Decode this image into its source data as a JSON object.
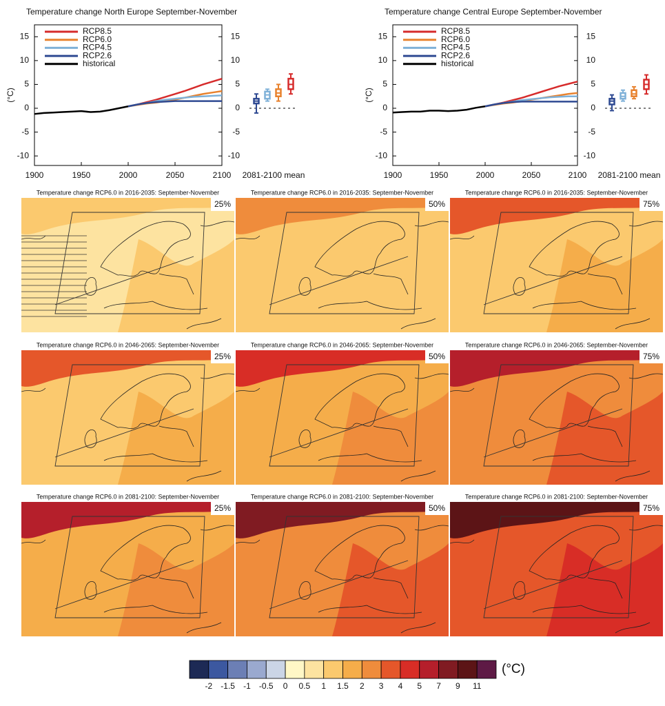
{
  "chart_data": [
    {
      "type": "line",
      "title": "Temperature change North Europe September-November",
      "ylabel": "(°C)",
      "xlabel2": "2081-2100 mean",
      "x": [
        1900,
        1910,
        1920,
        1930,
        1940,
        1950,
        1960,
        1970,
        1980,
        1990,
        2000,
        2010,
        2020,
        2030,
        2040,
        2050,
        2060,
        2070,
        2080,
        2090,
        2100
      ],
      "xlim": [
        1900,
        2100
      ],
      "xticks": [
        1900,
        1950,
        2000,
        2050,
        2100
      ],
      "ylim": [
        -12,
        17.5
      ],
      "yticks": [
        -10,
        -5,
        0,
        5,
        10,
        15
      ],
      "y2ticks": [
        -10,
        -5,
        0,
        5,
        10,
        15
      ],
      "legend": "upper left",
      "series": [
        {
          "name": "RCP8.5",
          "color": "#d62b2b",
          "values": [
            null,
            null,
            null,
            null,
            null,
            null,
            null,
            null,
            null,
            null,
            0.4,
            0.8,
            1.3,
            1.8,
            2.4,
            3.0,
            3.6,
            4.3,
            5.0,
            5.6,
            6.2
          ],
          "box": [
            3,
            4,
            5,
            6.2,
            7.2
          ]
        },
        {
          "name": "RCP6.0",
          "color": "#e8822e",
          "values": [
            null,
            null,
            null,
            null,
            null,
            null,
            null,
            null,
            null,
            null,
            0.4,
            0.7,
            1.0,
            1.2,
            1.5,
            1.8,
            2.2,
            2.6,
            3.0,
            3.3,
            3.6
          ],
          "box": [
            1.5,
            2.5,
            3.2,
            4,
            5
          ]
        },
        {
          "name": "RCP4.5",
          "color": "#7fb1d8",
          "values": [
            null,
            null,
            null,
            null,
            null,
            null,
            null,
            null,
            null,
            null,
            0.4,
            0.8,
            1.1,
            1.5,
            1.8,
            2.0,
            2.2,
            2.4,
            2.5,
            2.6,
            2.7
          ],
          "box": [
            1.5,
            2,
            2.8,
            3.5,
            4
          ]
        },
        {
          "name": "RCP2.6",
          "color": "#2f4a92",
          "values": [
            null,
            null,
            null,
            null,
            null,
            null,
            null,
            null,
            null,
            null,
            0.4,
            0.8,
            1.1,
            1.3,
            1.4,
            1.5,
            1.5,
            1.5,
            1.5,
            1.5,
            1.5
          ],
          "box": [
            -1,
            1,
            1.5,
            2,
            3
          ]
        },
        {
          "name": "historical",
          "color": "#000000",
          "values": [
            -1.2,
            -1,
            -0.9,
            -0.8,
            -0.7,
            -0.6,
            -0.8,
            -0.7,
            -0.4,
            0,
            0.4,
            null,
            null,
            null,
            null,
            null,
            null,
            null,
            null,
            null,
            null
          ]
        }
      ]
    },
    {
      "type": "line",
      "title": "Temperature change Central Europe September-November",
      "ylabel": "(°C)",
      "xlabel2": "2081-2100 mean",
      "x": [
        1900,
        1910,
        1920,
        1930,
        1940,
        1950,
        1960,
        1970,
        1980,
        1990,
        2000,
        2010,
        2020,
        2030,
        2040,
        2050,
        2060,
        2070,
        2080,
        2090,
        2100
      ],
      "xlim": [
        1900,
        2100
      ],
      "xticks": [
        1900,
        1950,
        2000,
        2050,
        2100
      ],
      "ylim": [
        -12,
        17.5
      ],
      "yticks": [
        -10,
        -5,
        0,
        5,
        10,
        15
      ],
      "y2ticks": [
        -10,
        -5,
        0,
        5,
        10,
        15
      ],
      "legend": "upper left",
      "series": [
        {
          "name": "RCP8.5",
          "color": "#d62b2b",
          "values": [
            null,
            null,
            null,
            null,
            null,
            null,
            null,
            null,
            null,
            null,
            0.4,
            0.8,
            1.2,
            1.7,
            2.2,
            2.8,
            3.4,
            4.0,
            4.6,
            5.1,
            5.6
          ],
          "box": [
            3,
            4,
            5,
            6,
            7
          ]
        },
        {
          "name": "RCP6.0",
          "color": "#e8822e",
          "values": [
            null,
            null,
            null,
            null,
            null,
            null,
            null,
            null,
            null,
            null,
            0.4,
            0.7,
            1.0,
            1.2,
            1.5,
            1.8,
            2.1,
            2.4,
            2.7,
            3.0,
            3.2
          ],
          "box": [
            2,
            2.5,
            3,
            3.8,
            4.5
          ]
        },
        {
          "name": "RCP4.5",
          "color": "#7fb1d8",
          "values": [
            null,
            null,
            null,
            null,
            null,
            null,
            null,
            null,
            null,
            null,
            0.4,
            0.8,
            1.1,
            1.4,
            1.7,
            1.9,
            2.1,
            2.3,
            2.4,
            2.5,
            2.5
          ],
          "box": [
            1.5,
            2,
            2.5,
            3.2,
            3.8
          ]
        },
        {
          "name": "RCP2.6",
          "color": "#2f4a92",
          "values": [
            null,
            null,
            null,
            null,
            null,
            null,
            null,
            null,
            null,
            null,
            0.4,
            0.8,
            1.1,
            1.3,
            1.4,
            1.4,
            1.4,
            1.4,
            1.4,
            1.4,
            1.4
          ],
          "box": [
            -0.5,
            0.8,
            1.5,
            2,
            2.8
          ]
        },
        {
          "name": "historical",
          "color": "#000000",
          "values": [
            -0.9,
            -0.8,
            -0.7,
            -0.7,
            -0.5,
            -0.5,
            -0.6,
            -0.5,
            -0.3,
            0.1,
            0.4,
            null,
            null,
            null,
            null,
            null,
            null,
            null,
            null,
            null,
            null
          ]
        }
      ]
    }
  ],
  "maps": [
    {
      "title": "Temperature change RCP6.0 in 2016-2035: September-November",
      "percentile": "25%",
      "colors": [
        "#fde3a0",
        "#fbc96e",
        "#fbc96e"
      ],
      "hatched": true
    },
    {
      "title": "Temperature change RCP6.0 in 2016-2035: September-November",
      "percentile": "50%",
      "colors": [
        "#fbc96e",
        "#fbc96e",
        "#ef8c3c"
      ],
      "hatched": false
    },
    {
      "title": "Temperature change RCP6.0 in 2016-2035: September-November",
      "percentile": "75%",
      "colors": [
        "#fbc96e",
        "#f5ad4a",
        "#e5572a"
      ],
      "hatched": false
    },
    {
      "title": "Temperature change RCP6.0 in 2046-2065: September-November",
      "percentile": "25%",
      "colors": [
        "#fbc96e",
        "#f5ad4a",
        "#e5572a"
      ],
      "hatched": false
    },
    {
      "title": "Temperature change RCP6.0 in 2046-2065: September-November",
      "percentile": "50%",
      "colors": [
        "#f5ad4a",
        "#ef8c3c",
        "#d82d26"
      ],
      "hatched": false
    },
    {
      "title": "Temperature change RCP6.0 in 2046-2065: September-November",
      "percentile": "75%",
      "colors": [
        "#ef8c3c",
        "#e5572a",
        "#b51f2b"
      ],
      "hatched": false
    },
    {
      "title": "Temperature change RCP6.0 in 2081-2100: September-November",
      "percentile": "25%",
      "colors": [
        "#f5ad4a",
        "#ef8c3c",
        "#b51f2b"
      ],
      "hatched": false
    },
    {
      "title": "Temperature change RCP6.0 in 2081-2100: September-November",
      "percentile": "50%",
      "colors": [
        "#ef8c3c",
        "#e5572a",
        "#801b22"
      ],
      "hatched": false
    },
    {
      "title": "Temperature change RCP6.0 in 2081-2100: September-November",
      "percentile": "75%",
      "colors": [
        "#e5572a",
        "#d82d26",
        "#5c1416"
      ],
      "hatched": false
    }
  ],
  "colorbar": {
    "unit": "(°C)",
    "ticks": [
      -2,
      -1.5,
      -1,
      -0.5,
      0,
      0.5,
      1,
      1.5,
      2,
      3,
      4,
      5,
      7,
      9,
      11
    ],
    "colors": [
      "#1d2a55",
      "#3c58a0",
      "#6c7fb5",
      "#9aa9cf",
      "#cbd5e6",
      "#fff7c6",
      "#fde3a0",
      "#fbc96e",
      "#f5ad4a",
      "#ef8c3c",
      "#e5572a",
      "#d82d26",
      "#b51f2b",
      "#801b22",
      "#5c1416",
      "#5e1a45"
    ]
  }
}
